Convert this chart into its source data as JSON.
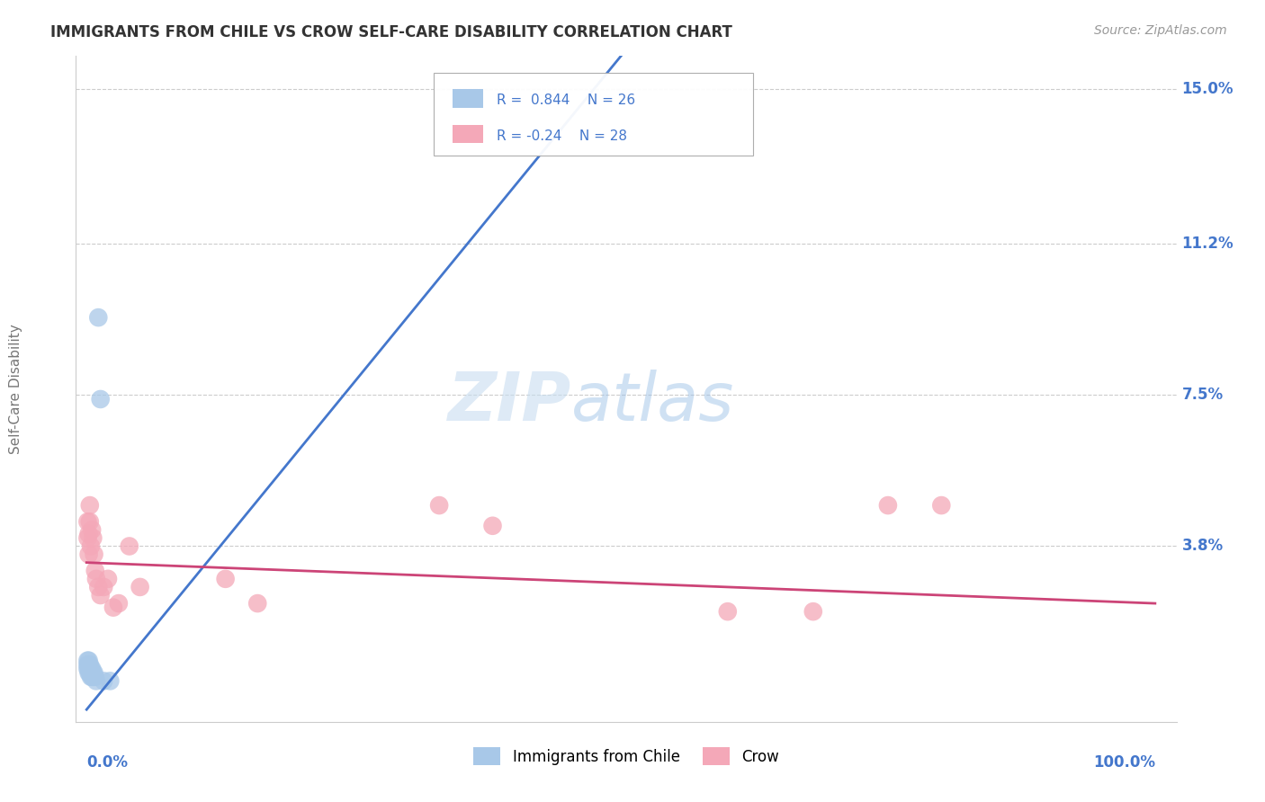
{
  "title": "IMMIGRANTS FROM CHILE VS CROW SELF-CARE DISABILITY CORRELATION CHART",
  "source": "Source: ZipAtlas.com",
  "ylabel": "Self-Care Disability",
  "xlim": [
    -0.01,
    1.02
  ],
  "ylim": [
    -0.005,
    0.158
  ],
  "yticks": [
    0.038,
    0.075,
    0.112,
    0.15
  ],
  "yticklabels": [
    "3.8%",
    "7.5%",
    "11.2%",
    "15.0%"
  ],
  "blue_R": 0.844,
  "blue_N": 26,
  "pink_R": -0.24,
  "pink_N": 28,
  "blue_color": "#a8c8e8",
  "pink_color": "#f4a8b8",
  "blue_line_color": "#4477cc",
  "pink_line_color": "#cc4477",
  "watermark_zip": "ZIP",
  "watermark_atlas": "atlas",
  "legend_label_blue": "Immigrants from Chile",
  "legend_label_pink": "Crow",
  "blue_scatter_x": [
    0.001,
    0.001,
    0.001,
    0.002,
    0.002,
    0.002,
    0.002,
    0.003,
    0.003,
    0.003,
    0.004,
    0.004,
    0.004,
    0.005,
    0.005,
    0.005,
    0.006,
    0.006,
    0.007,
    0.007,
    0.008,
    0.009,
    0.011,
    0.013,
    0.016,
    0.022
  ],
  "blue_scatter_y": [
    0.008,
    0.009,
    0.01,
    0.007,
    0.008,
    0.009,
    0.01,
    0.007,
    0.008,
    0.009,
    0.006,
    0.007,
    0.008,
    0.006,
    0.007,
    0.008,
    0.006,
    0.007,
    0.006,
    0.007,
    0.006,
    0.005,
    0.094,
    0.074,
    0.005,
    0.005
  ],
  "pink_scatter_x": [
    0.001,
    0.001,
    0.002,
    0.002,
    0.003,
    0.003,
    0.004,
    0.005,
    0.006,
    0.007,
    0.008,
    0.009,
    0.011,
    0.013,
    0.016,
    0.02,
    0.025,
    0.03,
    0.04,
    0.05,
    0.13,
    0.16,
    0.33,
    0.38,
    0.6,
    0.68,
    0.75,
    0.8
  ],
  "pink_scatter_y": [
    0.04,
    0.044,
    0.036,
    0.041,
    0.044,
    0.048,
    0.038,
    0.042,
    0.04,
    0.036,
    0.032,
    0.03,
    0.028,
    0.026,
    0.028,
    0.03,
    0.023,
    0.024,
    0.038,
    0.028,
    0.03,
    0.024,
    0.048,
    0.043,
    0.022,
    0.022,
    0.048,
    0.048
  ],
  "blue_trendline_x": [
    0.0,
    0.5
  ],
  "blue_trendline_y_start": -0.002,
  "blue_trendline_slope": 0.32,
  "pink_trendline_x": [
    0.0,
    1.0
  ],
  "pink_trendline_y_start": 0.034,
  "pink_trendline_y_end": 0.024,
  "grid_color": "#cccccc",
  "background_color": "#ffffff",
  "title_color": "#333333",
  "axis_label_color": "#777777",
  "tick_label_color": "#4477cc",
  "legend_box_color": "#4477cc"
}
